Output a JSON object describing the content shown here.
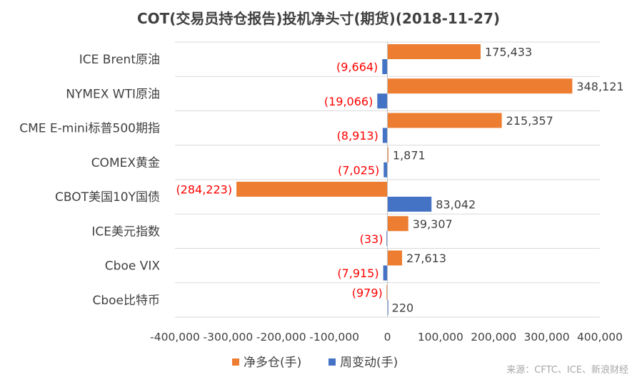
{
  "chart_data": {
    "type": "bar",
    "orientation": "horizontal",
    "title": "COT(交易员持仓报告)投机净头寸(期货)(2018-11-27)",
    "categories": [
      "ICE Brent原油",
      "NYMEX WTI原油",
      "CME E-mini标普500期指",
      "COMEX黄金",
      "CBOT美国10Y国债",
      "ICE美元指数",
      "Cboe VIX",
      "Cboe比特币"
    ],
    "series": [
      {
        "name": "净多仓(手)",
        "color": "#ED7D31",
        "values": [
          175433,
          348121,
          215357,
          1871,
          -284223,
          39307,
          27613,
          -979
        ],
        "labels": [
          "175,433",
          "348,121",
          "215,357",
          "1,871",
          "(284,223)",
          "39,307",
          "27,613",
          "(979)"
        ]
      },
      {
        "name": "周变动(手)",
        "color": "#4472C4",
        "values": [
          -9664,
          -19066,
          -8913,
          -7025,
          83042,
          -33,
          -7915,
          220
        ],
        "labels": [
          "(9,664)",
          "(19,066)",
          "(8,913)",
          "(7,025)",
          "83,042",
          "(33)",
          "(7,915)",
          "220"
        ]
      }
    ],
    "xlim": [
      -400000,
      400000
    ],
    "xticks": [
      -400000,
      -300000,
      -200000,
      -100000,
      0,
      100000,
      200000,
      300000,
      400000
    ],
    "xtick_labels": [
      "-400,000",
      "-300,000",
      "-200,000",
      "-100,000",
      "0",
      "100,000",
      "200,000",
      "300,000",
      "400,000"
    ],
    "negative_label_color": "#FF0000",
    "positive_label_color": "#404040",
    "grid": "horizontal category separators",
    "legend": "bottom"
  },
  "source": "来源：CFTC、ICE、新浪财经"
}
